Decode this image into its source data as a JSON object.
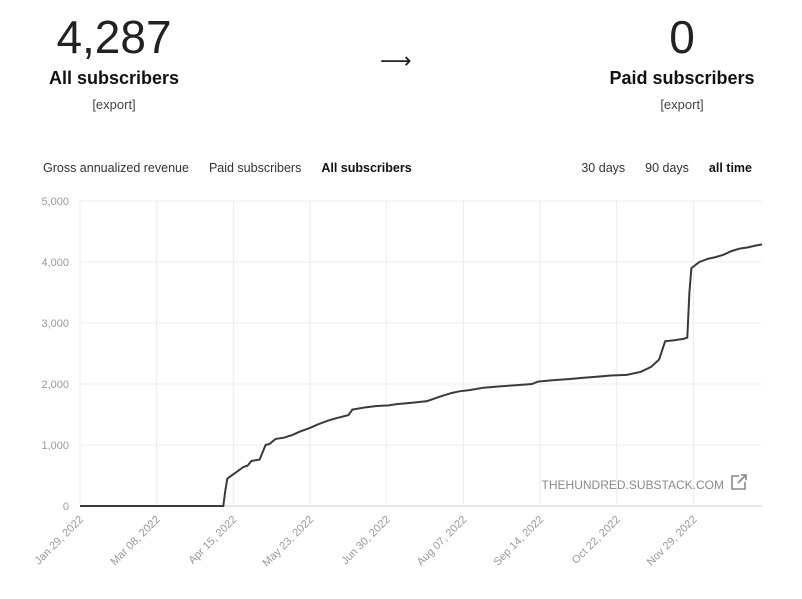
{
  "stats": {
    "left": {
      "value": "4,287",
      "label": "All subscribers",
      "export": "[export]"
    },
    "arrow": "⟶",
    "right": {
      "value": "0",
      "label": "Paid subscribers",
      "export": "[export]"
    }
  },
  "metric_tabs": [
    {
      "label": "Gross annualized revenue",
      "active": false
    },
    {
      "label": "Paid subscribers",
      "active": false
    },
    {
      "label": "All subscribers",
      "active": true
    }
  ],
  "range_tabs": [
    {
      "label": "30 days",
      "active": false
    },
    {
      "label": "90 days",
      "active": false
    },
    {
      "label": "all time",
      "active": true
    }
  ],
  "watermark": "THEHUNDRED.SUBSTACK.COM",
  "watermark_icon": "external-link-icon",
  "colors": {
    "line": "#3a3a3a",
    "grid": "#ececec",
    "axis_text": "#999999"
  },
  "chart_data": {
    "type": "line",
    "xlabel": "",
    "ylabel": "",
    "ylim": [
      0,
      5000
    ],
    "yticks": [
      0,
      1000,
      2000,
      3000,
      4000,
      5000
    ],
    "ytick_labels": [
      "0",
      "1,000",
      "2,000",
      "3,000",
      "4,000",
      "5,000"
    ],
    "xticks": [
      "2022-01-29",
      "2022-03-08",
      "2022-04-15",
      "2022-05-23",
      "2022-06-30",
      "2022-08-07",
      "2022-09-14",
      "2022-10-22",
      "2022-11-29"
    ],
    "xtick_labels": [
      "Jan 29, 2022",
      "Mar 08, 2022",
      "Apr 15, 2022",
      "May 23, 2022",
      "Jun 30, 2022",
      "Aug 07, 2022",
      "Sep 14, 2022",
      "Oct 22, 2022",
      "Nov 29, 2022"
    ],
    "xlim": [
      "2022-01-29",
      "2023-01-02"
    ],
    "grid": true,
    "series": [
      {
        "x": [
          "2022-01-29",
          "2022-04-10",
          "2022-04-11",
          "2022-04-12",
          "2022-04-15",
          "2022-04-20",
          "2022-04-22",
          "2022-04-24",
          "2022-04-28",
          "2022-05-01",
          "2022-05-03",
          "2022-05-06",
          "2022-05-10",
          "2022-05-14",
          "2022-05-18",
          "2022-05-23",
          "2022-05-27",
          "2022-06-01",
          "2022-06-05",
          "2022-06-11",
          "2022-06-13",
          "2022-06-20",
          "2022-06-25",
          "2022-07-01",
          "2022-07-05",
          "2022-07-12",
          "2022-07-20",
          "2022-07-27",
          "2022-08-01",
          "2022-08-05",
          "2022-08-10",
          "2022-08-17",
          "2022-08-25",
          "2022-09-02",
          "2022-09-10",
          "2022-09-13",
          "2022-09-20",
          "2022-09-28",
          "2022-10-05",
          "2022-10-12",
          "2022-10-19",
          "2022-10-27",
          "2022-11-03",
          "2022-11-08",
          "2022-11-12",
          "2022-11-15",
          "2022-11-20",
          "2022-11-24",
          "2022-11-26",
          "2022-11-27",
          "2022-11-28",
          "2022-12-02",
          "2022-12-06",
          "2022-12-10",
          "2022-12-14",
          "2022-12-18",
          "2022-12-22",
          "2022-12-26",
          "2022-12-30",
          "2023-01-02"
        ],
        "y": [
          0,
          0,
          250,
          450,
          520,
          640,
          660,
          740,
          760,
          1000,
          1020,
          1100,
          1120,
          1160,
          1220,
          1280,
          1340,
          1400,
          1440,
          1490,
          1580,
          1620,
          1640,
          1650,
          1670,
          1690,
          1720,
          1800,
          1850,
          1880,
          1900,
          1940,
          1960,
          1980,
          2000,
          2040,
          2060,
          2080,
          2100,
          2120,
          2140,
          2150,
          2200,
          2280,
          2400,
          2700,
          2720,
          2740,
          2760,
          3500,
          3900,
          4000,
          4050,
          4080,
          4120,
          4180,
          4220,
          4240,
          4270,
          4287
        ]
      }
    ]
  }
}
